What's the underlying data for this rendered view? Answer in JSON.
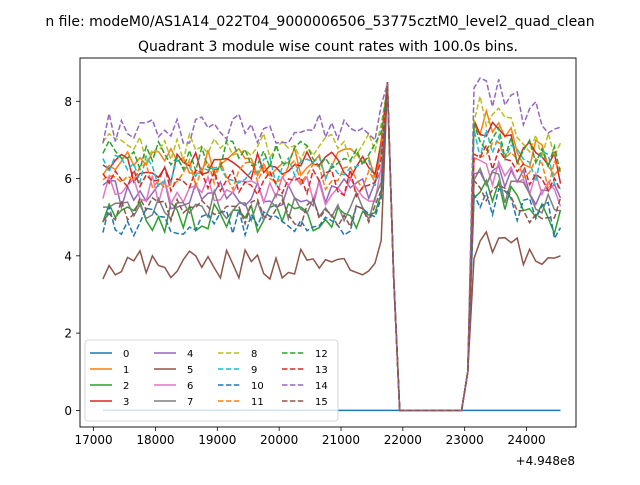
{
  "chart_data": {
    "type": "line",
    "suptitle": "n file: modeM0/AS1A14_022T04_9000006506_53775cztM0_level2_quad_clean",
    "title": "Quadrant 3 module wise count rates with 100.0s bins.",
    "xlabel": "",
    "ylabel": "",
    "x_offset_label": "+4.948e8",
    "xlim": [
      16780,
      24800
    ],
    "ylim": [
      -0.43,
      9.12
    ],
    "x_ticks": [
      17000,
      18000,
      19000,
      20000,
      21000,
      22000,
      23000,
      24000
    ],
    "y_ticks": [
      0,
      2,
      4,
      6,
      8
    ],
    "grid": false,
    "legend": {
      "placement": "lower-left",
      "ncol": 4
    },
    "x": {
      "start": 17150,
      "step": 100,
      "count": 75,
      "note": "x values are 17150 + 100*i for i = 0..74 (offset +4.948e8)"
    },
    "series": [
      {
        "name": "0",
        "color": "#1f77b4",
        "dash": "solid",
        "values": [
          0,
          0,
          0,
          0,
          0,
          0,
          0,
          0,
          0,
          0,
          0,
          0,
          0,
          0,
          0,
          0,
          0,
          0,
          0,
          0,
          0,
          0,
          0,
          0,
          0,
          0,
          0,
          0,
          0,
          0,
          0,
          0,
          0,
          0,
          0,
          0,
          0,
          0,
          0,
          0,
          0,
          0,
          0,
          0,
          0,
          0,
          0,
          0,
          0,
          0,
          0,
          0,
          0,
          0,
          0,
          0,
          0,
          0,
          0,
          0,
          0,
          0,
          0,
          0,
          0,
          0,
          0,
          0,
          0,
          0,
          0,
          0,
          0,
          0,
          0
        ]
      },
      {
        "name": "1",
        "color": "#ff7f0e",
        "dash": "solid",
        "level": 6.4,
        "hi": 7.5
      },
      {
        "name": "2",
        "color": "#2ca02c",
        "dash": "solid",
        "level": 5.0,
        "hi": 5.9
      },
      {
        "name": "3",
        "color": "#d62728",
        "dash": "solid",
        "level": 6.3,
        "hi": 7.3
      },
      {
        "name": "4",
        "color": "#9467bd",
        "dash": "solid",
        "level": 5.6,
        "hi": 6.2
      },
      {
        "name": "5",
        "color": "#8c564b",
        "dash": "solid",
        "level": 3.8,
        "hi": 4.3
      },
      {
        "name": "6",
        "color": "#e377c2",
        "dash": "solid",
        "level": 5.7,
        "hi": 6.3
      },
      {
        "name": "7",
        "color": "#7f7f7f",
        "dash": "solid",
        "level": 5.3,
        "hi": 6.0
      },
      {
        "name": "8",
        "color": "#bcbd22",
        "dash": "dashed",
        "level": 6.8,
        "hi": 7.8
      },
      {
        "name": "9",
        "color": "#17becf",
        "dash": "dashed",
        "level": 6.2,
        "hi": 7.0
      },
      {
        "name": "10",
        "color": "#1f77b4",
        "dash": "dashed",
        "level": 4.9,
        "hi": 5.6
      },
      {
        "name": "11",
        "color": "#ff7f0e",
        "dash": "dashed",
        "level": 6.1,
        "hi": 6.8
      },
      {
        "name": "12",
        "color": "#2ca02c",
        "dash": "dashed",
        "level": 6.6,
        "hi": 7.1
      },
      {
        "name": "13",
        "color": "#d62728",
        "dash": "dashed",
        "level": 5.9,
        "hi": 6.6
      },
      {
        "name": "14",
        "color": "#9467bd",
        "dash": "dashed",
        "level": 7.3,
        "hi": 8.6
      },
      {
        "name": "15",
        "color": "#8c564b",
        "dash": "dashed",
        "level": 5.1,
        "hi": 5.6
      }
    ],
    "shape_note": "Non-zero series have values near their level from x=17150 to 21750 (peaking near 8.5 at 21750), drop to 0 from 21950 to 22950, rise at 23150 to their 'hi' value, then decline to near level by 24550."
  }
}
